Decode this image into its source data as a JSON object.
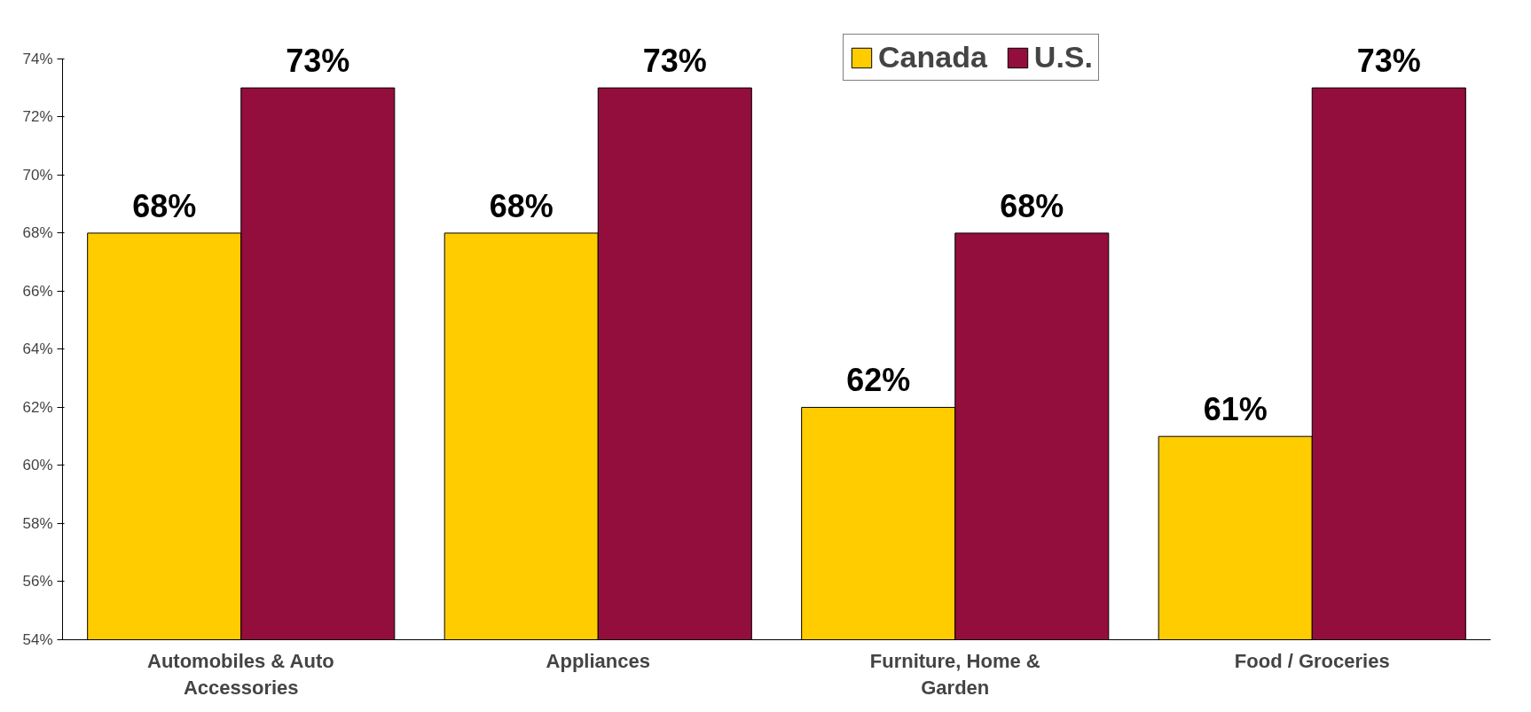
{
  "chart_data": {
    "type": "bar",
    "categories": [
      "Automobiles & Auto Accessories",
      "Appliances",
      "Furniture, Home & Garden",
      "Food / Groceries"
    ],
    "series": [
      {
        "name": "Canada",
        "color": "#ffcc00",
        "values": [
          68,
          68,
          62,
          61
        ],
        "value_labels": [
          "68%",
          "68%",
          "62%",
          "61%"
        ]
      },
      {
        "name": "U.S.",
        "color": "#930d3d",
        "values": [
          73,
          73,
          68,
          73
        ],
        "value_labels": [
          "73%",
          "73%",
          "68%",
          "73%"
        ]
      }
    ],
    "ylim": [
      54,
      74
    ],
    "yticks": [
      {
        "value": 54,
        "label": "54%"
      },
      {
        "value": 56,
        "label": "56%"
      },
      {
        "value": 58,
        "label": "58%"
      },
      {
        "value": 60,
        "label": "60%"
      },
      {
        "value": 62,
        "label": "62%"
      },
      {
        "value": 64,
        "label": "64%"
      },
      {
        "value": 66,
        "label": "66%"
      },
      {
        "value": 68,
        "label": "68%"
      },
      {
        "value": 70,
        "label": "70%"
      },
      {
        "value": 72,
        "label": "72%"
      },
      {
        "value": 74,
        "label": "74%"
      }
    ],
    "grid": false,
    "legend": "top"
  }
}
